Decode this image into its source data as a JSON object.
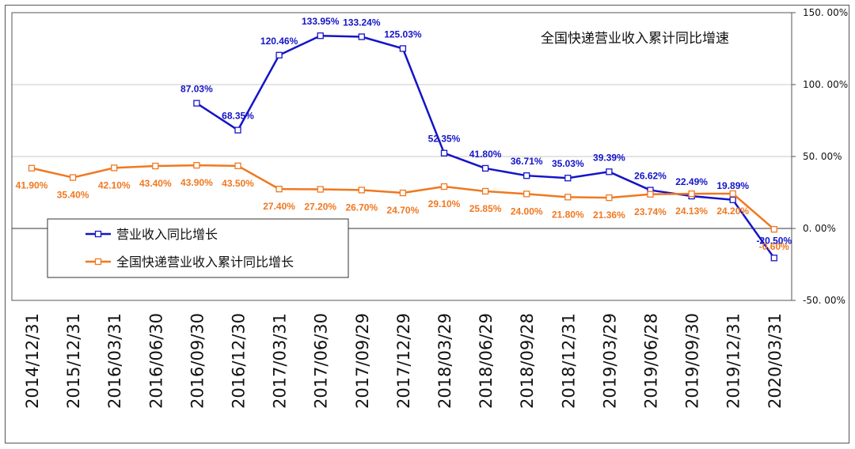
{
  "chart_data": {
    "type": "line",
    "title": "全国快递营业收入累计同比增速",
    "categories": [
      "2014/12/31",
      "2015/12/31",
      "2016/03/31",
      "2016/06/30",
      "2016/09/30",
      "2016/12/30",
      "2017/03/31",
      "2017/06/30",
      "2017/09/29",
      "2017/12/29",
      "2018/03/29",
      "2018/06/29",
      "2018/09/28",
      "2018/12/31",
      "2019/03/29",
      "2019/06/28",
      "2019/09/30",
      "2019/12/31",
      "2020/03/31"
    ],
    "ylim": [
      -50,
      150
    ],
    "y_ticks": [
      -50,
      0,
      50,
      100,
      150
    ],
    "y_tick_labels": [
      "-50. 00%",
      "0. 00%",
      "50. 00%",
      "100. 00%",
      "150. 00%"
    ],
    "y_axis_side": "right",
    "grid": true,
    "legend_position": "bottom-left",
    "series": [
      {
        "name": "营业收入同比增长",
        "color": "#1414c8",
        "values": [
          null,
          null,
          null,
          null,
          87.03,
          68.35,
          120.46,
          133.95,
          133.24,
          125.03,
          52.35,
          41.8,
          36.71,
          35.03,
          39.39,
          26.62,
          22.49,
          19.89,
          -20.5
        ],
        "labels": [
          "",
          "",
          "",
          "",
          "87.03%",
          "68.35%",
          "120.46%",
          "133.95%",
          "133.24%",
          "125.03%",
          "52.35%",
          "41.80%",
          "36.71%",
          "35.03%",
          "39.39%",
          "26.62%",
          "22.49%",
          "19.89%",
          "-20.50%"
        ]
      },
      {
        "name": "全国快递营业收入累计同比增长",
        "color": "#f07820",
        "values": [
          41.9,
          35.4,
          42.1,
          43.4,
          43.9,
          43.5,
          27.4,
          27.2,
          26.7,
          24.7,
          29.1,
          25.85,
          24.0,
          21.8,
          21.36,
          23.74,
          24.13,
          24.2,
          -0.6
        ],
        "labels": [
          "41.90%",
          "35.40%",
          "42.10%",
          "43.40%",
          "43.90%",
          "43.50%",
          "27.40%",
          "27.20%",
          "26.70%",
          "24.70%",
          "29.10%",
          "25.85%",
          "24.00%",
          "21.80%",
          "21.36%",
          "23.74%",
          "24.13%",
          "24.20%",
          "-0.60%"
        ]
      }
    ]
  }
}
